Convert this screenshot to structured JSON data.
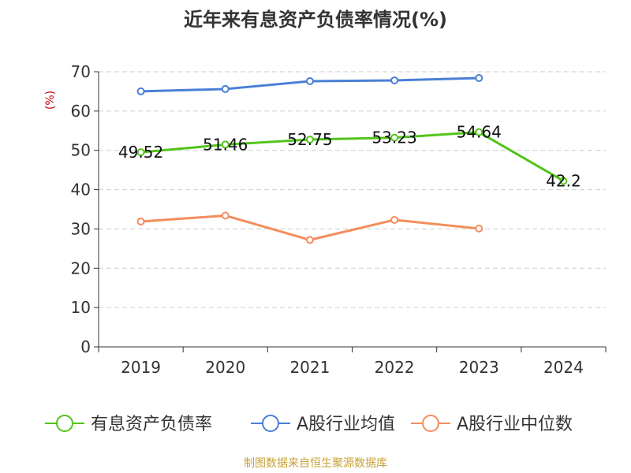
{
  "chart_data": {
    "type": "line",
    "title": "近年来有息资产负债率情况(%)",
    "ylabel": "(%)",
    "xlabel": "",
    "categories": [
      "2019",
      "2020",
      "2021",
      "2022",
      "2023",
      "2024"
    ],
    "ylim": [
      0,
      70
    ],
    "yticks": [
      0,
      10,
      20,
      30,
      40,
      50,
      60,
      70
    ],
    "grid": true,
    "legend_position": "bottom",
    "series": [
      {
        "name": "有息资产负债率",
        "color": "#52c41a",
        "values": [
          49.52,
          51.46,
          52.75,
          53.23,
          54.64,
          42.2
        ],
        "labels": [
          "49.52",
          "51.46",
          "52.75",
          "53.23",
          "54.64",
          "42.2"
        ]
      },
      {
        "name": "A股行业均值",
        "color": "#4a7fd6",
        "values": [
          65.0,
          65.6,
          67.6,
          67.8,
          68.4,
          null
        ],
        "labels": null
      },
      {
        "name": "A股行业中位数",
        "color": "#f48d5c",
        "values": [
          31.9,
          33.4,
          27.2,
          32.3,
          30.1,
          null
        ],
        "labels": null
      }
    ]
  },
  "footer": {
    "source": "制图数据来自恒生聚源数据库"
  }
}
